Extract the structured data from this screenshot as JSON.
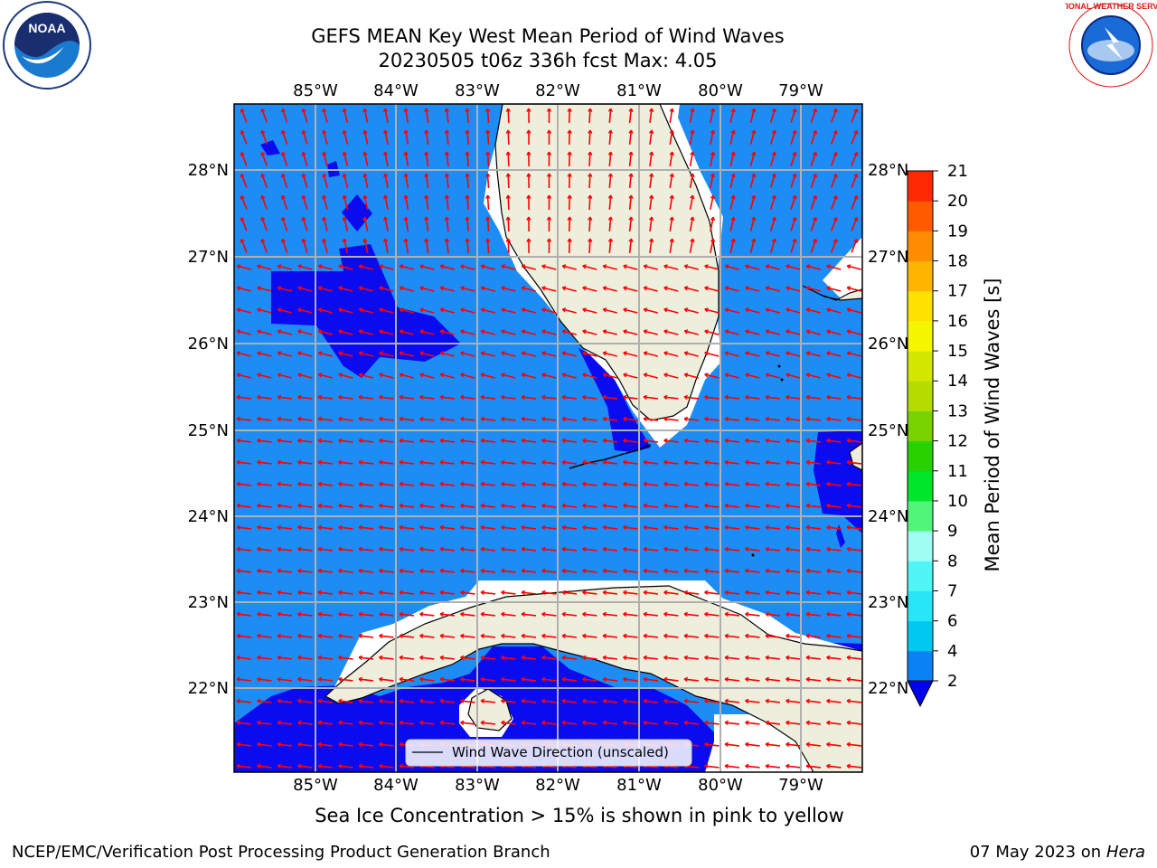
{
  "header": {
    "title_line1": "GEFS MEAN Key West Mean Period of Wind Waves",
    "title_line2": "20230505 t06z 336h fcst   Max: 4.05"
  },
  "map": {
    "lon_labels": [
      "85°W",
      "84°W",
      "83°W",
      "82°W",
      "81°W",
      "80°W",
      "79°W"
    ],
    "lat_labels": [
      "28°N",
      "27°N",
      "26°N",
      "25°N",
      "24°N",
      "23°N",
      "22°N"
    ],
    "legend_label": "Wind Wave Direction (unscaled)",
    "colors": {
      "ocean_low": "#1e8cf5",
      "ocean_lower": "#0b0bf0",
      "land": "#eeeedd",
      "arrow": "#ff0000"
    }
  },
  "colorbar": {
    "label": "Mean Period of Wind Waves [s]",
    "ticks": [
      "2",
      "4",
      "6",
      "7",
      "8",
      "9",
      "10",
      "11",
      "12",
      "13",
      "14",
      "15",
      "16",
      "17",
      "18",
      "19",
      "20",
      "21"
    ],
    "colors": [
      "#0a82f5",
      "#00c8f0",
      "#28e6f5",
      "#50f5f5",
      "#a0fff5",
      "#50f57a",
      "#00e628",
      "#28d200",
      "#78d200",
      "#b4dc00",
      "#d2e600",
      "#f5f500",
      "#ffe100",
      "#ffb400",
      "#ff8c00",
      "#ff5a00",
      "#ff2800",
      "#ff0000"
    ],
    "extend_color": "#0000f0"
  },
  "footer": {
    "sea_ice_note": "Sea Ice Concentration > 15% is shown in pink to yellow",
    "credit": "NCEP/EMC/Verification Post Processing Product Generation Branch",
    "date": "07 May 2023 on",
    "host": "Hera"
  },
  "logos": {
    "noaa_text": "NOAA",
    "nws_text": "NATIONAL WEATHER SERVICE"
  }
}
